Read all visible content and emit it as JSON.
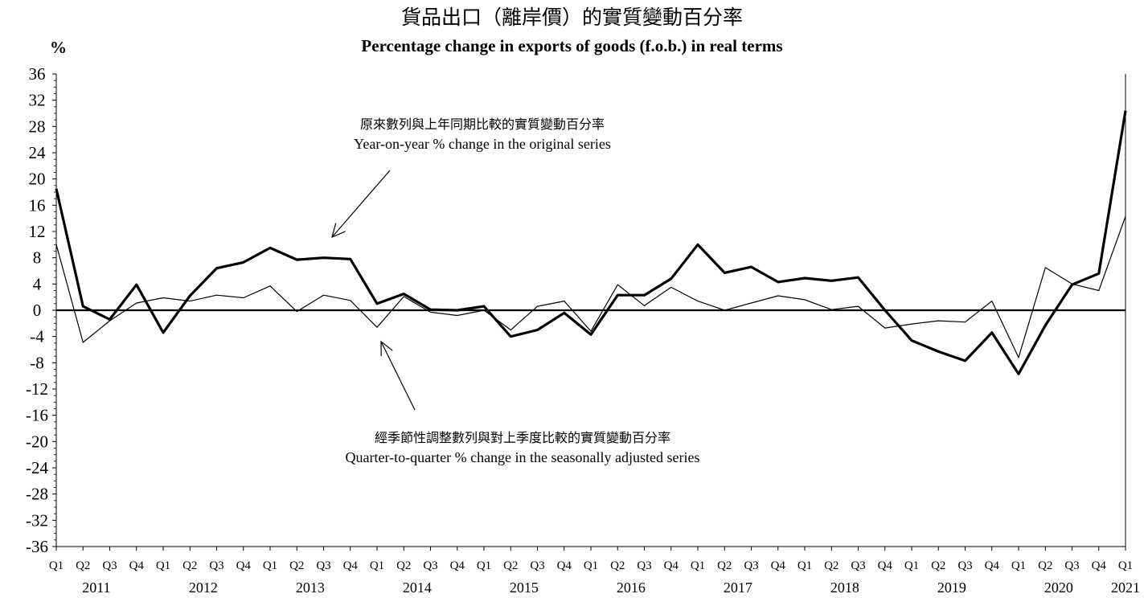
{
  "title_zh": "貨品出口（離岸價）的實質變動百分率",
  "title_en": "Percentage change in exports of goods (f.o.b.) in real terms",
  "unit_label": "%",
  "annotation_yoy": {
    "zh": "原來數列與上年同期比較的實質變動百分率",
    "en": "Year-on-year % change in the original series"
  },
  "annotation_qoq": {
    "zh": "經季節性調整數列與對上季度比較的實質變動百分率",
    "en": "Quarter-to-quarter % change in the seasonally adjusted series"
  },
  "chart_data": {
    "type": "line",
    "ylim": [
      -36,
      36
    ],
    "yticks": [
      36,
      32,
      28,
      24,
      20,
      16,
      12,
      8,
      4,
      0,
      -4,
      -8,
      -12,
      -16,
      -20,
      -24,
      -28,
      -32,
      -36
    ],
    "quarters": [
      "Q1",
      "Q2",
      "Q3",
      "Q4",
      "Q1",
      "Q2",
      "Q3",
      "Q4",
      "Q1",
      "Q2",
      "Q3",
      "Q4",
      "Q1",
      "Q2",
      "Q3",
      "Q4",
      "Q1",
      "Q2",
      "Q3",
      "Q4",
      "Q1",
      "Q2",
      "Q3",
      "Q4",
      "Q1",
      "Q2",
      "Q3",
      "Q4",
      "Q1",
      "Q2",
      "Q3",
      "Q4",
      "Q1",
      "Q2",
      "Q3",
      "Q4",
      "Q1",
      "Q2",
      "Q3",
      "Q4",
      "Q1"
    ],
    "years": [
      {
        "label": "2011",
        "start": 0,
        "end": 3
      },
      {
        "label": "2012",
        "start": 4,
        "end": 7
      },
      {
        "label": "2013",
        "start": 8,
        "end": 11
      },
      {
        "label": "2014",
        "start": 12,
        "end": 15
      },
      {
        "label": "2015",
        "start": 16,
        "end": 19
      },
      {
        "label": "2016",
        "start": 20,
        "end": 23
      },
      {
        "label": "2017",
        "start": 24,
        "end": 27
      },
      {
        "label": "2018",
        "start": 28,
        "end": 31
      },
      {
        "label": "2019",
        "start": 32,
        "end": 35
      },
      {
        "label": "2020",
        "start": 36,
        "end": 39
      },
      {
        "label": "2021",
        "start": 40,
        "end": 40
      }
    ],
    "grid": false,
    "series": [
      {
        "values": [
          18.5,
          0.6,
          -1.4,
          3.9,
          -3.4,
          2.2,
          6.4,
          7.3,
          9.5,
          7.7,
          8.0,
          7.8,
          1.0,
          2.5,
          0.1,
          0.0,
          0.6,
          -4.0,
          -3.0,
          -0.4,
          -3.7,
          2.3,
          2.3,
          4.8,
          10.0,
          5.7,
          6.6,
          4.3,
          4.9,
          4.5,
          5.0,
          0.0,
          -4.6,
          -6.3,
          -7.7,
          -3.4,
          -9.7,
          -2.3,
          3.9,
          5.6,
          30.4
        ],
        "color": "#000000",
        "width": 3.2
      },
      {
        "values": [
          10.0,
          -4.9,
          -1.6,
          1.1,
          1.9,
          1.4,
          2.3,
          1.9,
          3.7,
          -0.2,
          2.3,
          1.5,
          -2.6,
          2.1,
          -0.3,
          -0.8,
          0.0,
          -3.0,
          0.6,
          1.4,
          -3.2,
          3.9,
          0.7,
          3.5,
          1.4,
          0.0,
          1.1,
          2.2,
          1.6,
          0.1,
          0.6,
          -2.7,
          -2.1,
          -1.6,
          -1.8,
          1.4,
          -7.2,
          6.5,
          4.0,
          3.0,
          14.3
        ],
        "color": "#000000",
        "width": 1.2
      }
    ]
  }
}
